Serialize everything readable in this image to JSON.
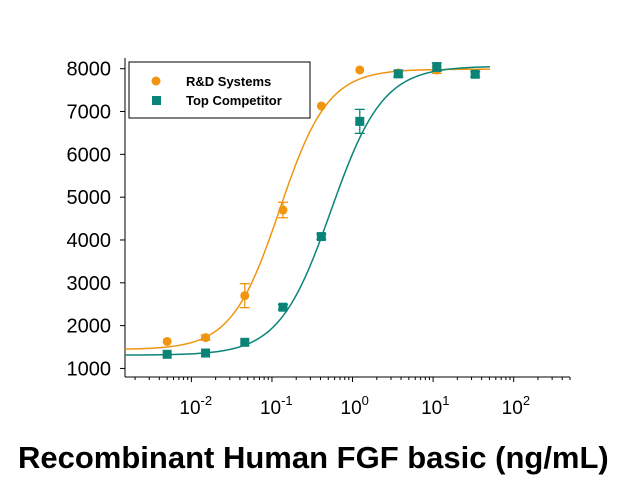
{
  "chart_data": {
    "type": "scatter",
    "title": "",
    "xlabel": "Recombinant Human FGF basic (ng/mL)",
    "ylabel": "",
    "xscale": "log10",
    "xlim": [
      0.0015,
      500
    ],
    "ylim": [
      800,
      8250
    ],
    "yticks": [
      1000,
      2000,
      3000,
      4000,
      5000,
      6000,
      7000,
      8000
    ],
    "xticks": [
      {
        "value": 0.01,
        "base": "10",
        "exp": "-2"
      },
      {
        "value": 0.1,
        "base": "10",
        "exp": "-1"
      },
      {
        "value": 1,
        "base": "10",
        "exp": "0"
      },
      {
        "value": 10,
        "base": "10",
        "exp": "1"
      },
      {
        "value": 100,
        "base": "10",
        "exp": "2"
      }
    ],
    "legend_position": "top-left",
    "series": [
      {
        "name": "R&D Systems",
        "marker": "circle",
        "color": "#ef9510",
        "x": [
          0.005,
          0.015,
          0.046,
          0.137,
          0.41,
          1.23,
          3.7,
          11.1,
          33.3
        ],
        "y": [
          1630,
          1720,
          2700,
          4700,
          7130,
          7970,
          7900,
          7970,
          7880
        ],
        "err": [
          0,
          60,
          280,
          180,
          0,
          0,
          60,
          80,
          0
        ],
        "fit": {
          "bottom": 1440,
          "top": 7990,
          "ec50": 0.125,
          "hill": 1.45
        }
      },
      {
        "name": "Top Competitor",
        "marker": "square",
        "color": "#0b8478",
        "x": [
          0.005,
          0.015,
          0.046,
          0.137,
          0.41,
          1.23,
          3.7,
          11.1,
          33.3
        ],
        "y": [
          1330,
          1360,
          1610,
          2430,
          4080,
          6770,
          7880,
          8040,
          7870
        ],
        "err": [
          0,
          0,
          0,
          60,
          60,
          280,
          80,
          100,
          60
        ],
        "fit": {
          "bottom": 1310,
          "top": 8060,
          "ec50": 0.54,
          "hill": 1.35
        }
      }
    ]
  }
}
